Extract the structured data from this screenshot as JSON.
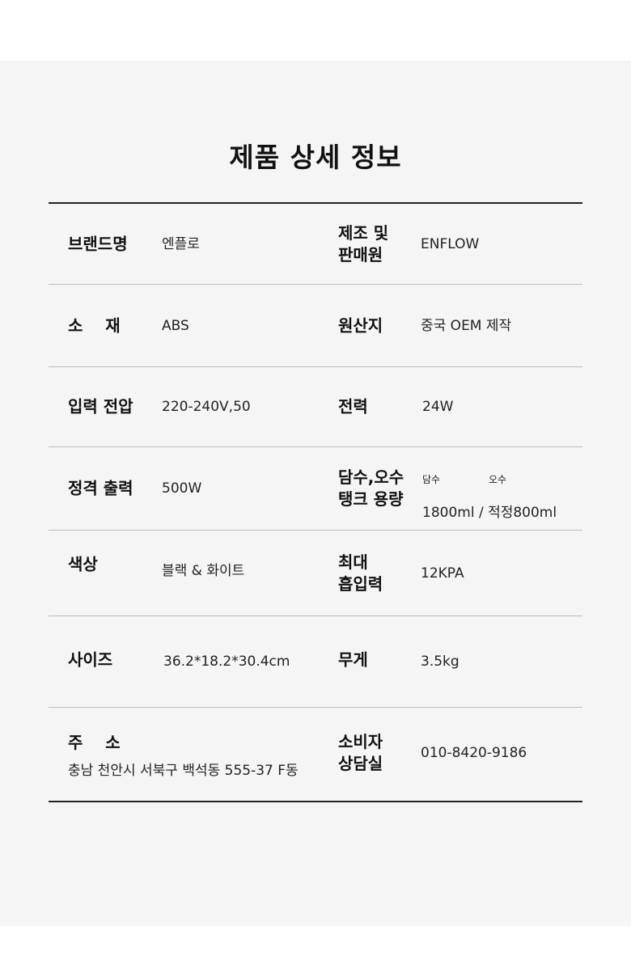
{
  "title": "제품 상세 정보",
  "rows": [
    {
      "l1": "브랜드명",
      "v1": "엔플로",
      "l2": "제조 및\n판매원",
      "v2": "ENFLOW"
    },
    {
      "l1": "소    재",
      "v1": "ABS",
      "l2": "원산지",
      "v2": "중국 OEM 제작"
    },
    {
      "l1": "입력 전압",
      "v1": "220-240V,50",
      "l2": "전력",
      "v2": "24W"
    },
    {
      "l1": "정격 출력",
      "v1": "500W",
      "l2": "담수,오수\n탱크 용량",
      "v2_small_a": "담수",
      "v2_small_b": "오수",
      "v2": "1800ml / 적정800ml"
    },
    {
      "l1": "색상",
      "v1": "블랙 & 화이트",
      "l2": "최대\n흡입력",
      "v2": "12KPA"
    },
    {
      "l1": "사이즈",
      "v1": "36.2*18.2*30.4cm",
      "l2": "무게",
      "v2": "3.5kg"
    },
    {
      "l1": "주    소",
      "v1": "충남 천안시 서북구 백석동 555-37 F동",
      "l2": "소비자\n상담실",
      "v2": "010-8420-9186"
    }
  ]
}
